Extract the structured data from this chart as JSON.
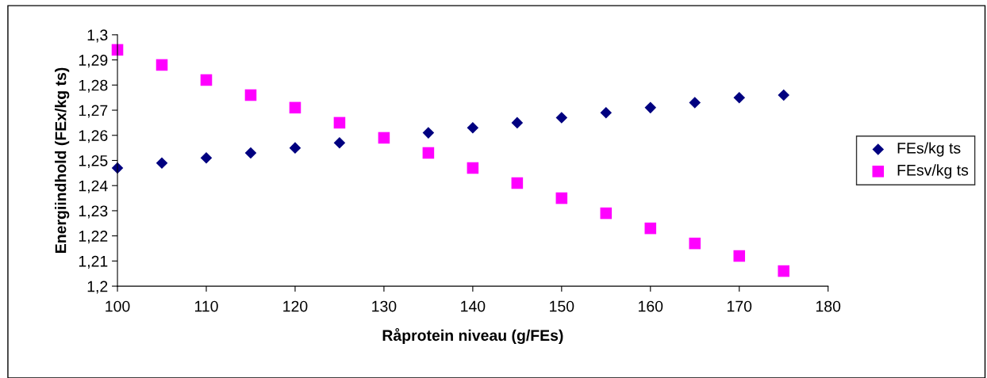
{
  "chart_data": {
    "type": "scatter",
    "xlabel": "Råprotein niveau (g/FEs)",
    "ylabel": "Energiindhold (FEx/kg ts)",
    "x": [
      100,
      105,
      110,
      115,
      120,
      125,
      130,
      135,
      140,
      145,
      150,
      155,
      160,
      165,
      170,
      175
    ],
    "series": [
      {
        "name": "FEs/kg ts",
        "color": "#000080",
        "marker": "diamond",
        "values": [
          1.247,
          1.249,
          1.251,
          1.253,
          1.255,
          1.257,
          null,
          1.261,
          1.263,
          1.265,
          1.267,
          1.269,
          1.271,
          1.273,
          1.275,
          1.276
        ]
      },
      {
        "name": "FEsv/kg ts",
        "color": "#ff00ff",
        "marker": "square",
        "values": [
          1.294,
          1.288,
          1.282,
          1.276,
          1.271,
          1.265,
          1.259,
          1.253,
          1.247,
          1.241,
          1.235,
          1.229,
          1.223,
          1.217,
          1.212,
          1.206
        ]
      }
    ],
    "xlim": [
      100,
      180
    ],
    "xticks": [
      100,
      110,
      120,
      130,
      140,
      150,
      160,
      170,
      180
    ],
    "ylim": [
      1.2,
      1.3
    ],
    "yticks": [
      {
        "value": 1.2,
        "label": "1,2"
      },
      {
        "value": 1.21,
        "label": "1,21"
      },
      {
        "value": 1.22,
        "label": "1,22"
      },
      {
        "value": 1.23,
        "label": "1,23"
      },
      {
        "value": 1.24,
        "label": "1,24"
      },
      {
        "value": 1.25,
        "label": "1,25"
      },
      {
        "value": 1.26,
        "label": "1,26"
      },
      {
        "value": 1.27,
        "label": "1,27"
      },
      {
        "value": 1.28,
        "label": "1,28"
      },
      {
        "value": 1.29,
        "label": "1,29"
      },
      {
        "value": 1.3,
        "label": "1,3"
      }
    ],
    "grid": false,
    "legend": "right"
  }
}
